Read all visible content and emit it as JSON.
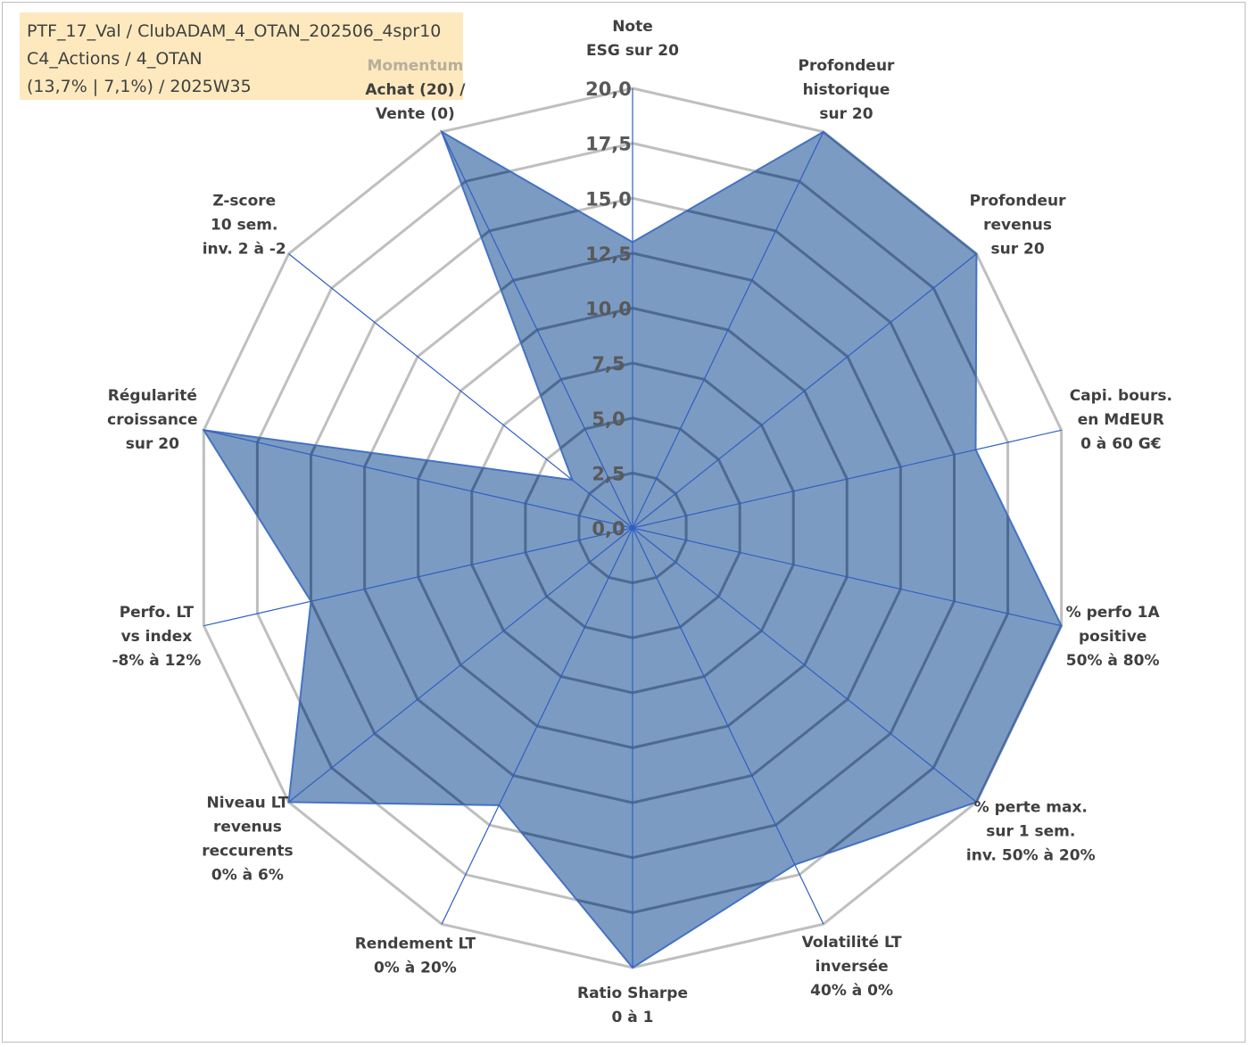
{
  "infobox": {
    "line1": "PTF_17_Val / ClubADAM_4_OTAN_202506_4spr10",
    "line2": "C4_Actions / 4_OTAN",
    "line3": "(13,7% | 7,1%) / 2025W35"
  },
  "colors": {
    "fill": "#5b82b3",
    "stroke": "#4472c4",
    "grid": "#bfbfbf",
    "inner_grid": "#4d6a92",
    "spoke": "#2f5fc4",
    "infobox": "#fde9bd",
    "momentum_label": "#b8ae9c"
  },
  "chart_data": {
    "type": "radar",
    "title": "",
    "rmin": 0,
    "rmax": 20,
    "tick_step": 2.5,
    "tick_labels": [
      "0,0",
      "2,5",
      "5,0",
      "7,5",
      "10,0",
      "12,5",
      "15,0",
      "17,5",
      "20,0"
    ],
    "axes": [
      {
        "lines": [
          "Note",
          "ESG sur 20"
        ]
      },
      {
        "lines": [
          "Profondeur",
          "historique",
          "sur 20"
        ]
      },
      {
        "lines": [
          "Profondeur",
          "revenus",
          "sur 20"
        ]
      },
      {
        "lines": [
          "Capi. bours.",
          "en MdEUR",
          "0 à 60 G€"
        ]
      },
      {
        "lines": [
          "% perfo 1A",
          "positive",
          "50% à 80%"
        ]
      },
      {
        "lines": [
          "% perte max.",
          "sur 1 sem.",
          "inv. 50% à 20%"
        ]
      },
      {
        "lines": [
          "Volatilité LT",
          "inversée",
          "40% à 0%"
        ]
      },
      {
        "lines": [
          "Ratio Sharpe",
          "0 à 1"
        ]
      },
      {
        "lines": [
          "Rendement LT",
          "0% à 20%"
        ]
      },
      {
        "lines": [
          "Niveau LT",
          "revenus",
          "reccurents",
          "0% à 6%"
        ]
      },
      {
        "lines": [
          "Perfo. LT",
          "vs index",
          "-8% à 12%"
        ]
      },
      {
        "lines": [
          "Régularité",
          "croissance",
          "sur 20"
        ]
      },
      {
        "lines": [
          "Z-score",
          "10 sem.",
          "inv. 2 à -2"
        ]
      },
      {
        "lines": [
          "Momentum",
          "Achat (20) /",
          "Vente (0)"
        ]
      }
    ],
    "series": [
      {
        "values": [
          13.0,
          20.0,
          20.0,
          16.0,
          20.0,
          20.0,
          17.0,
          20.0,
          14.0,
          20.0,
          15.0,
          20.0,
          3.5,
          20.0
        ]
      }
    ]
  }
}
